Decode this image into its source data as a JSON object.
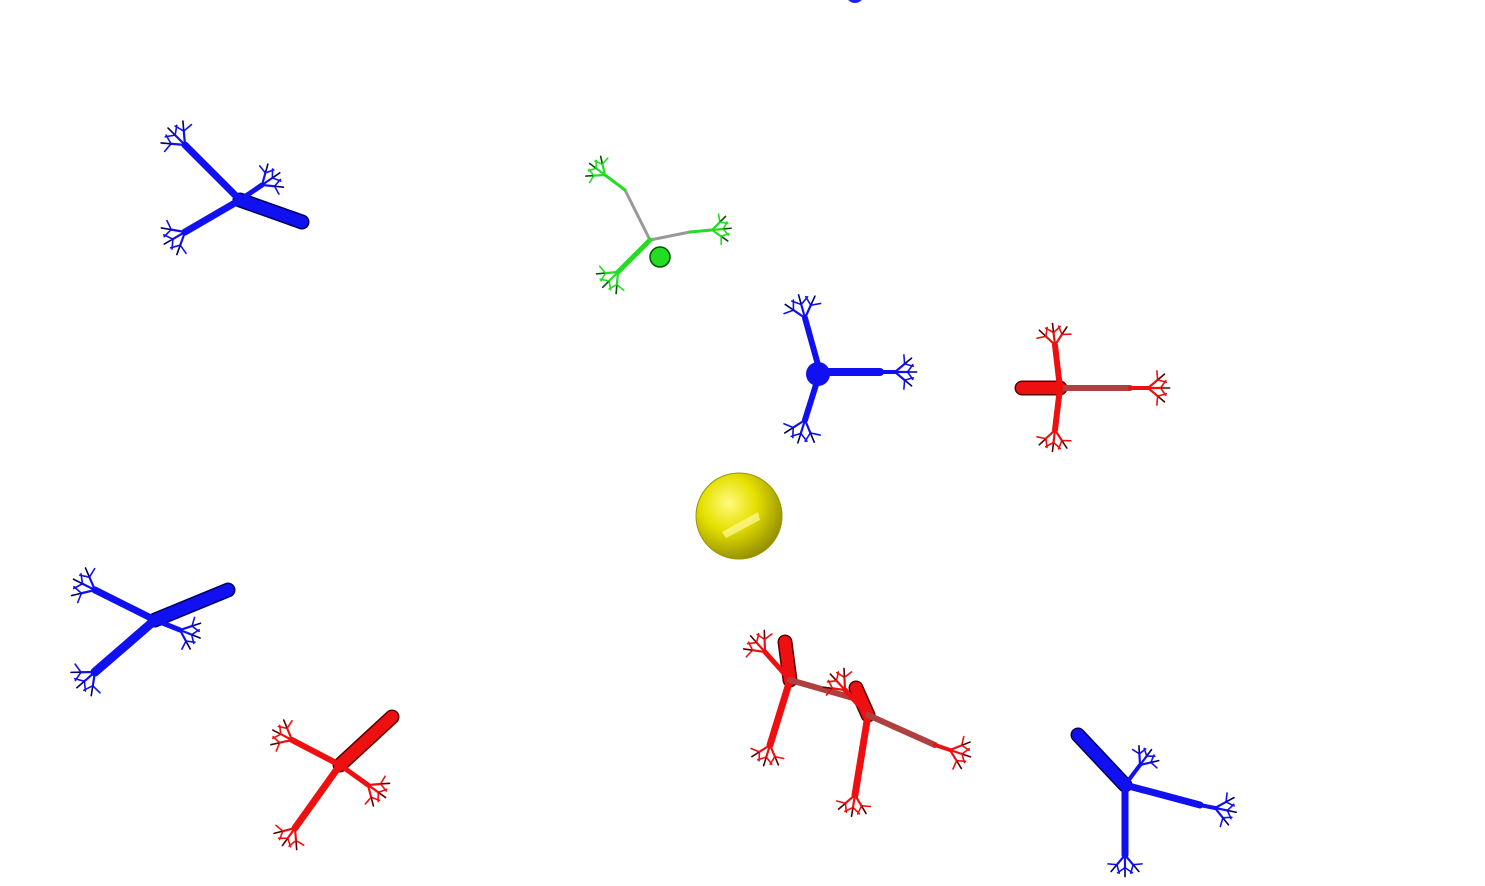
{
  "scene": {
    "background": "#ffffff",
    "colors": {
      "blue": "#1010f0",
      "blue_dark": "#000060",
      "red": "#ee1010",
      "red_dark": "#5a0000",
      "green": "#22dd22",
      "green_dark": "#005500",
      "yellow": "#e6e000",
      "yellow_dark": "#9a9400"
    },
    "molecules": [
      {
        "name": "molecule-blue-top-left",
        "color": "blue"
      },
      {
        "name": "molecule-green-top",
        "color": "green"
      },
      {
        "name": "molecule-blue-center",
        "color": "blue"
      },
      {
        "name": "molecule-red-right",
        "color": "red"
      },
      {
        "name": "molecule-blue-left",
        "color": "blue"
      },
      {
        "name": "molecule-red-bottom-left",
        "color": "red"
      },
      {
        "name": "molecule-red-bottom-center",
        "color": "red"
      },
      {
        "name": "molecule-blue-bottom-right",
        "color": "blue"
      }
    ],
    "ion": {
      "name": "yellow-ion-sphere",
      "color": "yellow"
    }
  }
}
